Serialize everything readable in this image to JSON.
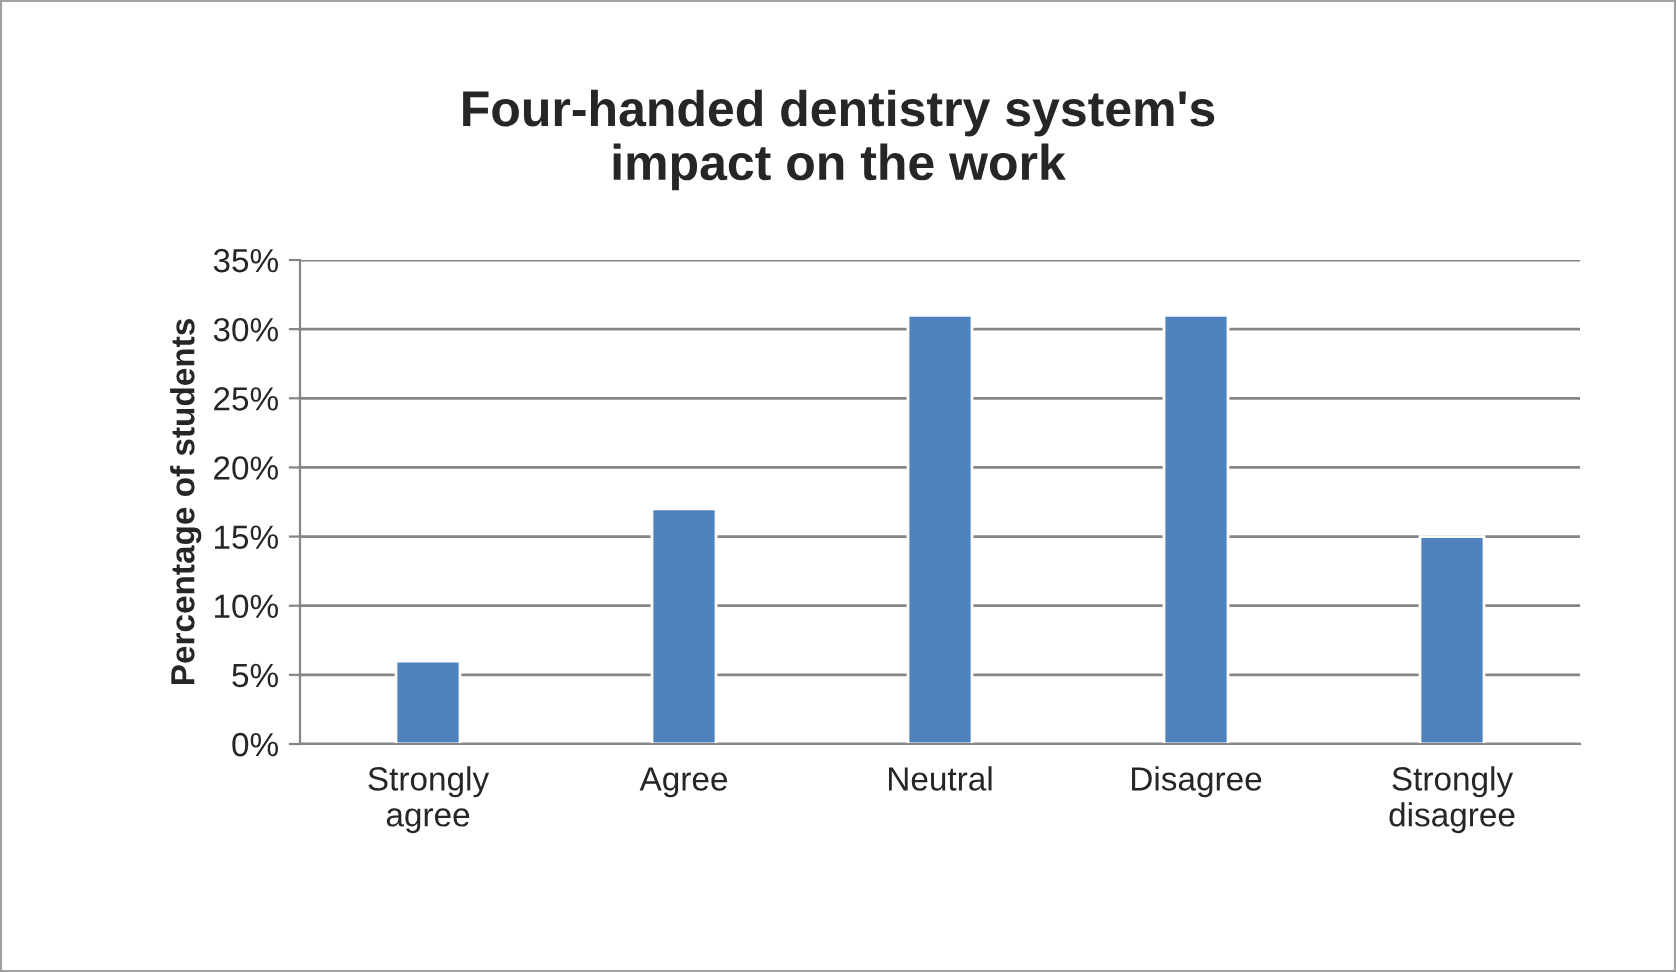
{
  "chart_data": {
    "type": "bar",
    "title": "Four-handed dentistry system's\nimpact on the work",
    "ylabel": "Percentage of students",
    "categories": [
      "Strongly\nagree",
      "Agree",
      "Neutral",
      "Disagree",
      "Strongly\ndisagree"
    ],
    "values": [
      6,
      17,
      31,
      31,
      15
    ],
    "color": "#4f81bd",
    "ylim": [
      0,
      35
    ],
    "yticks": [
      {
        "value": 0,
        "label": "0%"
      },
      {
        "value": 5,
        "label": "5%"
      },
      {
        "value": 10,
        "label": "10%"
      },
      {
        "value": 15,
        "label": "15%"
      },
      {
        "value": 20,
        "label": "20%"
      },
      {
        "value": 25,
        "label": "25%"
      },
      {
        "value": 30,
        "label": "30%"
      },
      {
        "value": 35,
        "label": "35%"
      }
    ],
    "grid": "y",
    "legend": false
  }
}
